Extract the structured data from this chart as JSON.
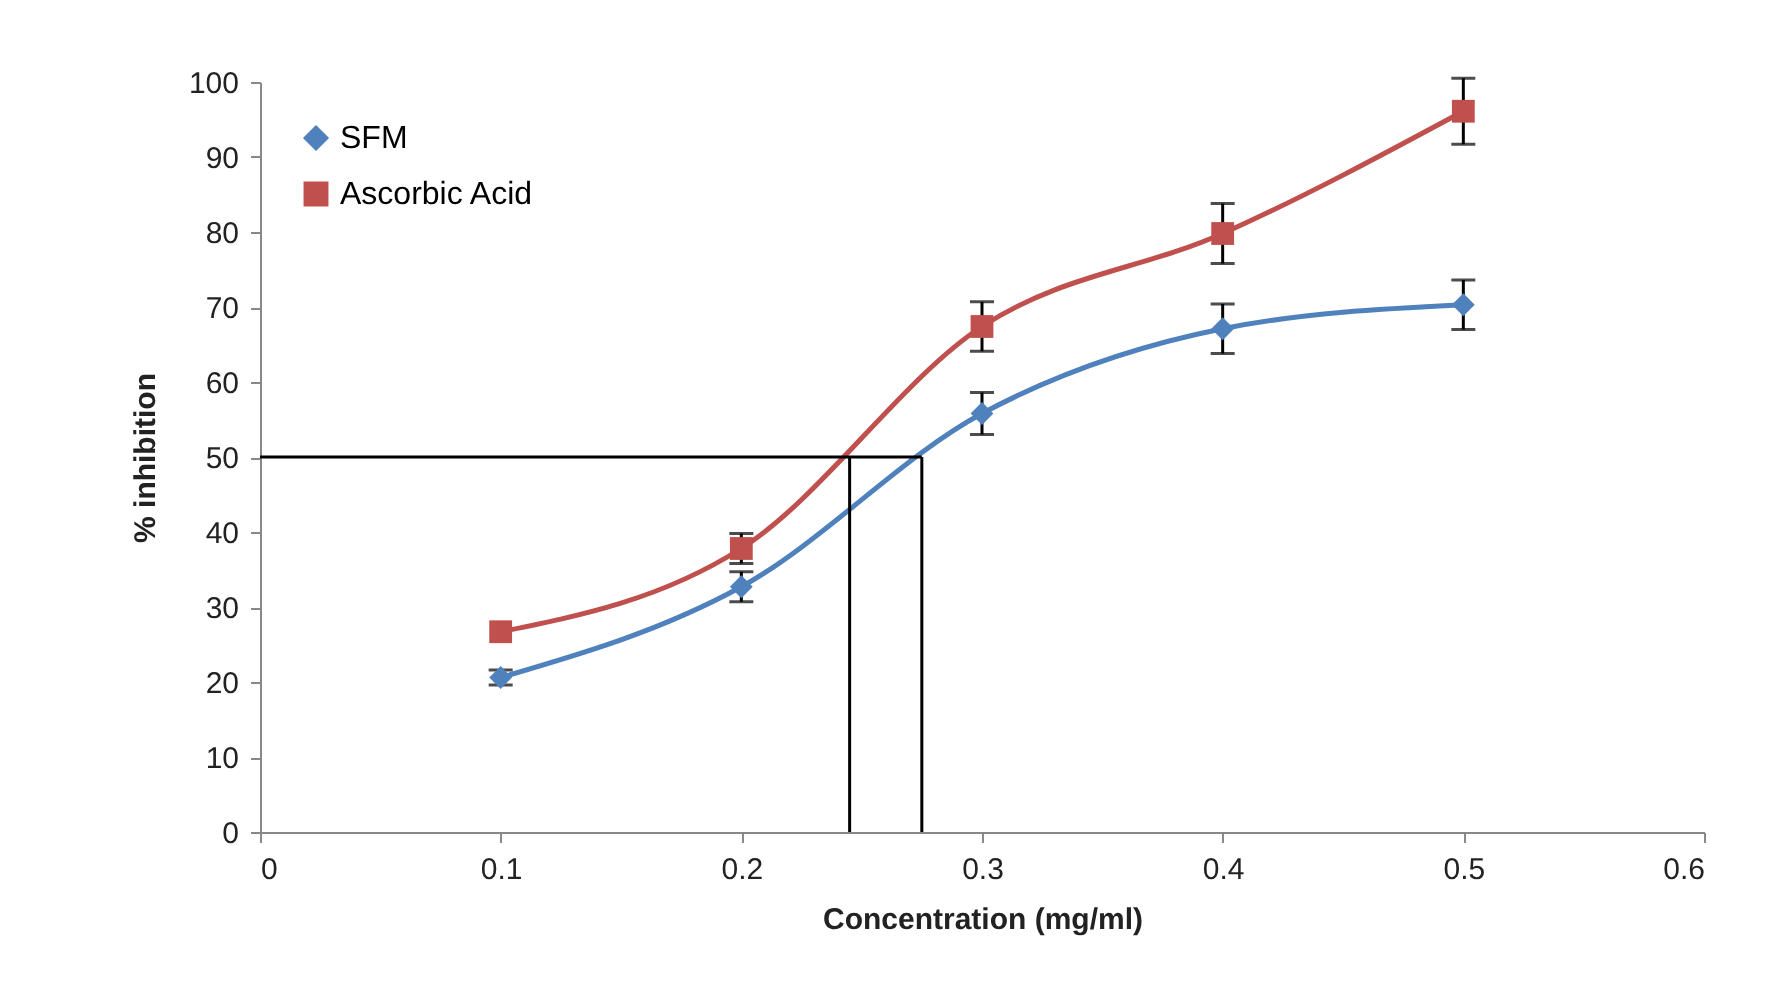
{
  "chart_data": {
    "type": "line",
    "xlabel": "Concentration (mg/ml)",
    "ylabel": "% inhibition",
    "x": [
      0.1,
      0.2,
      0.3,
      0.4,
      0.5
    ],
    "series": [
      {
        "name": "SFM",
        "color": "#4f81bd",
        "marker": "diamond",
        "values": [
          20.6,
          32.7,
          55.8,
          67.1,
          70.3
        ],
        "errors": [
          1,
          2,
          2.8,
          3.3,
          3.3
        ]
      },
      {
        "name": "Ascorbic Acid",
        "color": "#c0504d",
        "marker": "square",
        "values": [
          26.7,
          37.8,
          67.4,
          79.8,
          96.1
        ],
        "errors": [
          null,
          2,
          3.3,
          4,
          4.4
        ]
      }
    ],
    "xlim": [
      0,
      0.6
    ],
    "xticks": [
      0,
      0.1,
      0.2,
      0.3,
      0.4,
      0.5,
      0.6
    ],
    "ylim": [
      0,
      100
    ],
    "yticks": [
      0,
      10,
      20,
      30,
      40,
      50,
      60,
      70,
      80,
      90,
      100
    ],
    "ref_lines": [
      {
        "axis": "y",
        "value": 50,
        "color": "#000000"
      },
      {
        "axis": "x",
        "value": 0.245,
        "color": "#000000"
      },
      {
        "axis": "x",
        "value": 0.275,
        "color": "#000000"
      }
    ],
    "grid": false,
    "legend": "top left"
  }
}
